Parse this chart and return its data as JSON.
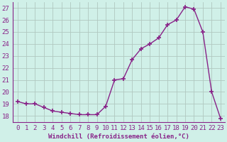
{
  "x": [
    0,
    1,
    2,
    3,
    4,
    5,
    6,
    7,
    8,
    9,
    10,
    11,
    12,
    13,
    14,
    15,
    16,
    17,
    18,
    19,
    20,
    21,
    22,
    23
  ],
  "y": [
    19.2,
    19.0,
    19.0,
    18.7,
    18.4,
    18.3,
    18.2,
    18.1,
    18.1,
    18.1,
    18.8,
    21.0,
    21.1,
    22.7,
    23.6,
    24.0,
    24.5,
    25.6,
    26.0,
    27.1,
    26.9,
    25.0,
    20.0,
    17.8
  ],
  "line_color": "#882288",
  "marker": "+",
  "marker_size": 5,
  "line_width": 1.0,
  "bg_color": "#d0f0e8",
  "grid_color": "#b0c8c0",
  "xlabel": "Windchill (Refroidissement éolien,°C)",
  "xlabel_color": "#882288",
  "tick_color": "#882288",
  "spine_color": "#882288",
  "ylim": [
    17.5,
    27.5
  ],
  "xlim": [
    -0.5,
    23.5
  ],
  "yticks": [
    18,
    19,
    20,
    21,
    22,
    23,
    24,
    25,
    26,
    27
  ],
  "xticks": [
    0,
    1,
    2,
    3,
    4,
    5,
    6,
    7,
    8,
    9,
    10,
    11,
    12,
    13,
    14,
    15,
    16,
    17,
    18,
    19,
    20,
    21,
    22,
    23
  ],
  "font_size": 6.5
}
